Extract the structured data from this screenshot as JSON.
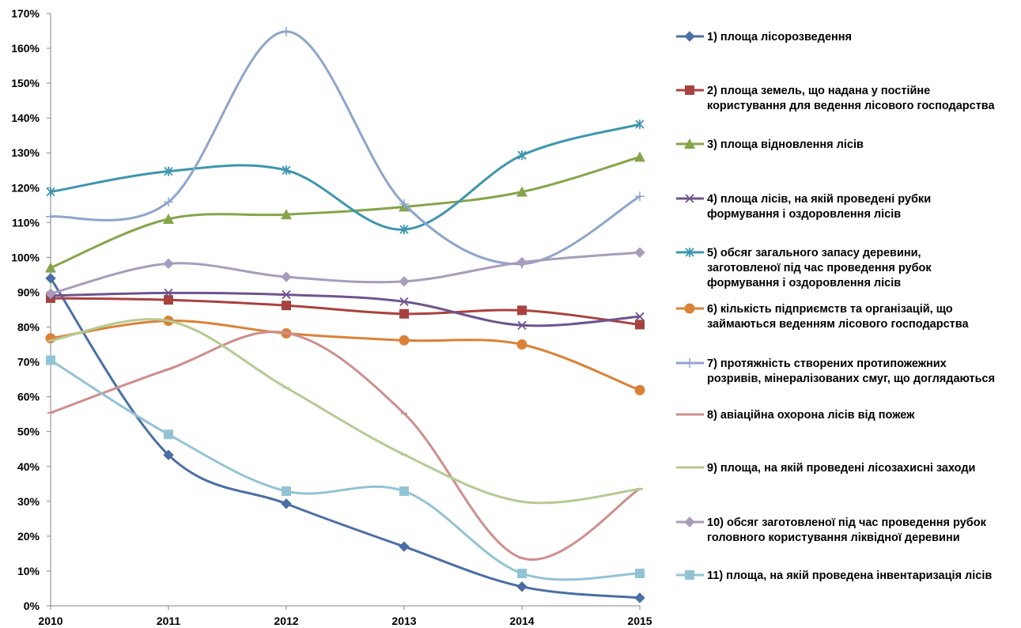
{
  "chart_data": {
    "type": "line",
    "x": [
      "2010",
      "2011",
      "2012",
      "2013",
      "2014",
      "2015"
    ],
    "ylim": [
      0,
      170
    ],
    "yticks": [
      "0%",
      "10%",
      "20%",
      "30%",
      "40%",
      "50%",
      "60%",
      "70%",
      "80%",
      "90%",
      "100%",
      "110%",
      "120%",
      "130%",
      "140%",
      "150%",
      "160%",
      "170%"
    ],
    "grid": false,
    "legend_position": "right",
    "series": [
      {
        "name": [
          "1) площа лісорозведення"
        ],
        "color": "#4a6fa5",
        "marker": "diamond",
        "values": [
          94,
          43.3,
          29.3,
          17,
          5.5,
          2.3
        ]
      },
      {
        "name": [
          "2) площа земель, що надана у постійне",
          "користування для ведення лісового господарства"
        ],
        "color": "#a8423f",
        "marker": "square",
        "values": [
          88.3,
          87.8,
          86.2,
          83.8,
          84.8,
          80.7
        ]
      },
      {
        "name": [
          "3) площа відновлення лісів"
        ],
        "color": "#86a44a",
        "marker": "triangle",
        "values": [
          97,
          111,
          112.3,
          114.5,
          118.8,
          128.8
        ]
      },
      {
        "name": [
          "4) площа лісів, на якій проведені  рубки",
          "формування і оздоровлення лісів"
        ],
        "color": "#6e548d",
        "marker": "x",
        "values": [
          89,
          89.8,
          89.3,
          87.3,
          80.5,
          83
        ]
      },
      {
        "name": [
          "5) обсяг загального запасу деревини,",
          "заготовленої під час проведення  рубок",
          "формування і оздоровлення лісів"
        ],
        "color": "#3d96ae",
        "marker": "asterisk",
        "values": [
          118.8,
          124.7,
          125,
          108,
          129.3,
          138.2
        ]
      },
      {
        "name": [
          "6) кількість підприємств та організацій, що",
          "займаються веденням лісового господарства"
        ],
        "color": "#da8137",
        "marker": "circle",
        "values": [
          76.8,
          81.8,
          78.2,
          76.2,
          75,
          61.9
        ]
      },
      {
        "name": [
          "7) протяжність створених протипожежних",
          "розривів, мінералізованих смуг, що доглядаються"
        ],
        "color": "#8ea5cb",
        "marker": "plus",
        "values": [
          111.7,
          115.9,
          164.8,
          115.3,
          98.1,
          117.5
        ]
      },
      {
        "name": [
          "8) авіаційна охорона лісів від пожеж"
        ],
        "color": "#ce8e8d",
        "marker": "dash",
        "values": [
          55.4,
          67.9,
          78.3,
          55.2,
          13.7,
          33.6
        ]
      },
      {
        "name": [
          "9) площа, на якій проведені лісозахисні заходи"
        ],
        "color": "#b5ca92",
        "marker": "dash",
        "values": [
          76.1,
          81.8,
          62.6,
          43.4,
          29.9,
          33.5
        ]
      },
      {
        "name": [
          "10) обсяг заготовленої під час проведення  рубок",
          "головного користування ліквідної деревини"
        ],
        "color": "#a99bbd",
        "marker": "diamond",
        "values": [
          89.6,
          98.2,
          94.4,
          93.1,
          98.6,
          101.4
        ]
      },
      {
        "name": [
          "11) площа, на якій проведена інвентаризація лісів"
        ],
        "color": "#92c3d4",
        "marker": "square",
        "values": [
          70.5,
          49.2,
          32.9,
          32.9,
          9.3,
          9.3
        ]
      }
    ]
  }
}
